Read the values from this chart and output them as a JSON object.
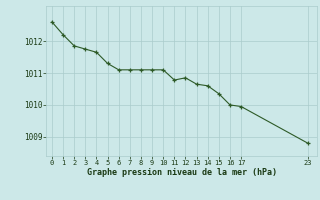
{
  "x": [
    0,
    1,
    2,
    3,
    4,
    5,
    6,
    7,
    8,
    9,
    10,
    11,
    12,
    13,
    14,
    15,
    16,
    17,
    23
  ],
  "y": [
    1012.6,
    1012.2,
    1011.85,
    1011.75,
    1011.65,
    1011.3,
    1011.1,
    1011.1,
    1011.1,
    1011.1,
    1011.1,
    1010.78,
    1010.85,
    1010.65,
    1010.6,
    1010.35,
    1010.0,
    1009.95,
    1008.8
  ],
  "bg_color": "#cce8e8",
  "line_color": "#2d5a27",
  "marker_color": "#2d5a27",
  "grid_color": "#aacccc",
  "xlabel": "Graphe pression niveau de la mer (hPa)",
  "xlabel_color": "#1a3a14",
  "tick_color": "#1a3a14",
  "yticks": [
    1009,
    1010,
    1011,
    1012
  ],
  "xticks": [
    0,
    1,
    2,
    3,
    4,
    5,
    6,
    7,
    8,
    9,
    10,
    11,
    12,
    13,
    14,
    15,
    16,
    17,
    23
  ],
  "ylim": [
    1008.4,
    1013.1
  ],
  "xlim": [
    -0.5,
    23.8
  ]
}
